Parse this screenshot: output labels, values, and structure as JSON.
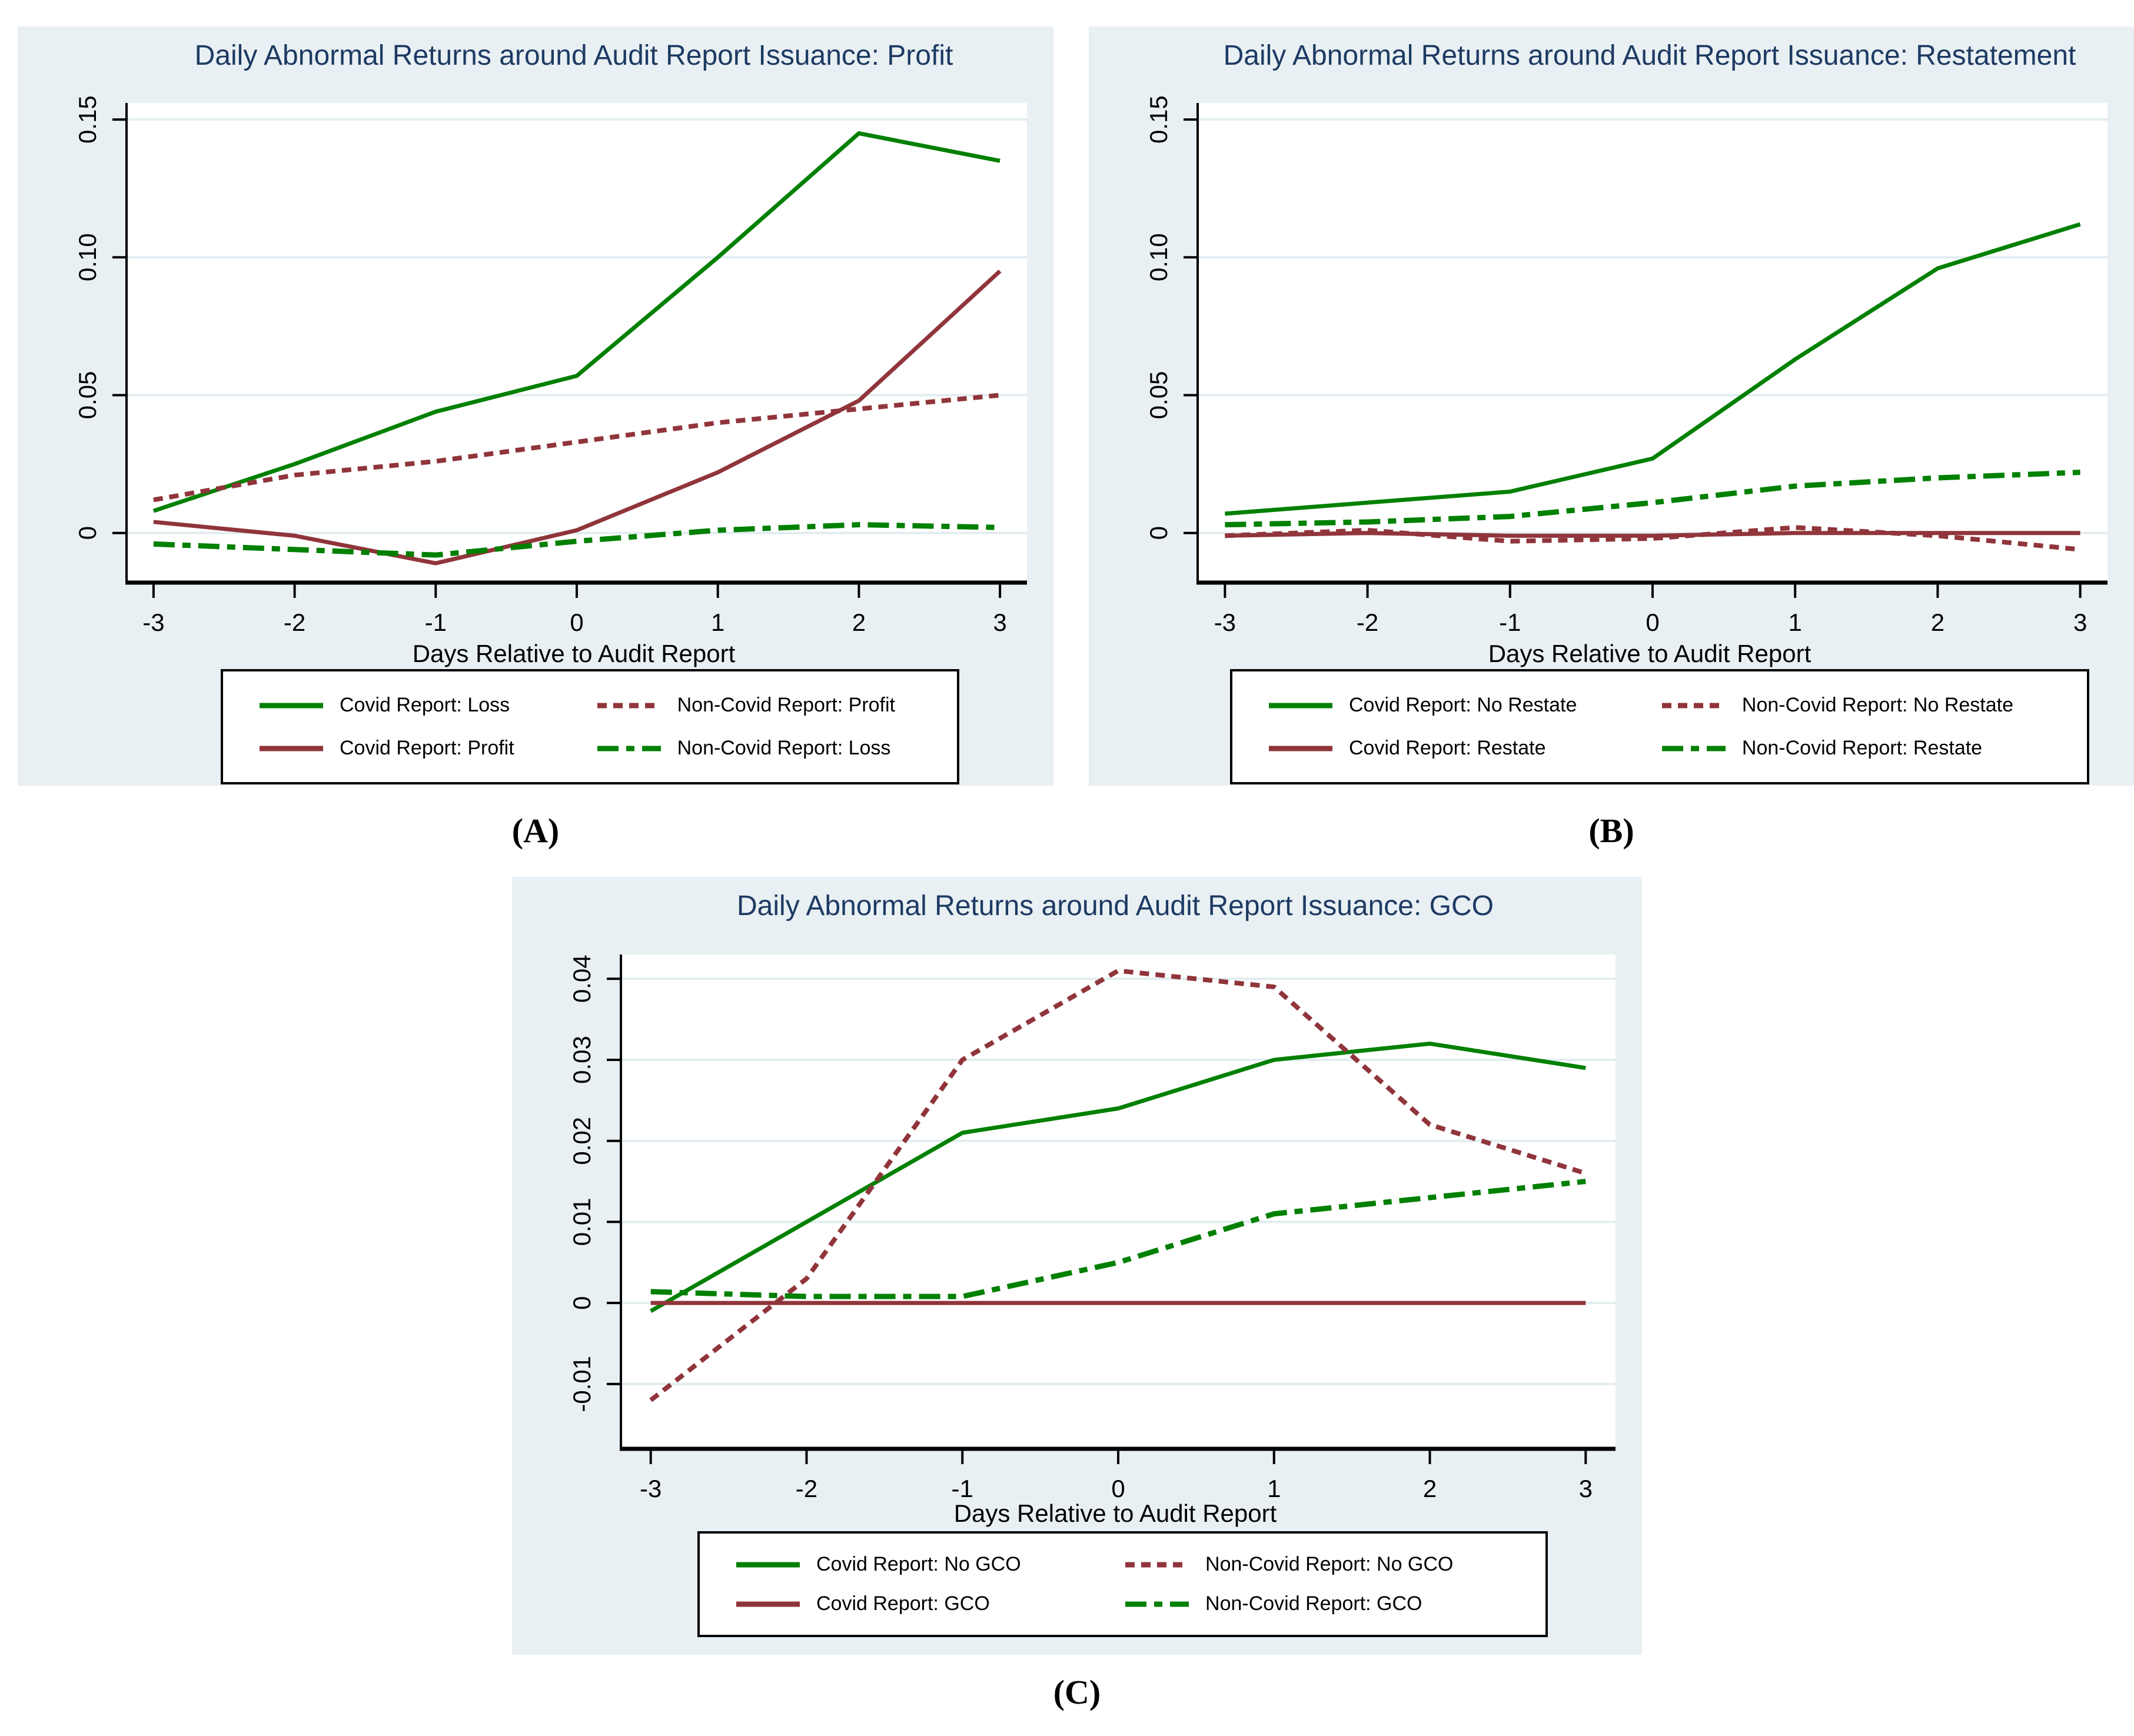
{
  "colors": {
    "figure_background": "#e9f0f3",
    "plot_background": "#ffffff",
    "gridline": "#e2edf0",
    "axis": "#000000",
    "title_navy": "#1d3a63",
    "green": "#008000",
    "maroon": "#90353b"
  },
  "panel_captions": {
    "a": "(A)",
    "b": "(B)",
    "c": "(C)"
  },
  "chart_data": [
    {
      "type": "line",
      "title": "Daily Abnormal Returns around Audit Report Issuance: Profit",
      "xlabel": "Days Relative to Audit Report",
      "ylabel": "",
      "grid": true,
      "legend_position": "bottom",
      "x": [
        -3,
        -2,
        -1,
        0,
        1,
        2,
        3
      ],
      "xlim": [
        -3,
        3
      ],
      "ylim": [
        -0.018,
        0.156
      ],
      "xticks": [
        {
          "v": -3,
          "label": "-3"
        },
        {
          "v": -2,
          "label": "-2"
        },
        {
          "v": -1,
          "label": "-1"
        },
        {
          "v": 0,
          "label": "0"
        },
        {
          "v": 1,
          "label": "1"
        },
        {
          "v": 2,
          "label": "2"
        },
        {
          "v": 3,
          "label": "3"
        }
      ],
      "yticks": [
        {
          "v": 0,
          "label": "0"
        },
        {
          "v": 0.05,
          "label": "0.05"
        },
        {
          "v": 0.1,
          "label": "0.10"
        },
        {
          "v": 0.15,
          "label": "0.15"
        }
      ],
      "series": [
        {
          "name": "Covid Report: Loss",
          "color": "#008000",
          "dash": "",
          "width": 7,
          "values": [
            0.008,
            0.025,
            0.044,
            0.057,
            0.1,
            0.145,
            0.135
          ]
        },
        {
          "name": "Covid Report: Profit",
          "color": "#90353b",
          "dash": "",
          "width": 7,
          "values": [
            0.004,
            -0.001,
            -0.011,
            0.001,
            0.022,
            0.048,
            0.095
          ]
        },
        {
          "name": "Non-Covid Report: Profit",
          "color": "#90353b",
          "dash": "16 11",
          "width": 8,
          "values": [
            0.012,
            0.021,
            0.026,
            0.033,
            0.04,
            0.045,
            0.05
          ]
        },
        {
          "name": "Non-Covid Report: Loss",
          "color": "#008000",
          "dash": "36 13 14 13",
          "width": 9,
          "values": [
            -0.004,
            -0.006,
            -0.008,
            -0.003,
            0.001,
            0.003,
            0.002
          ]
        }
      ]
    },
    {
      "type": "line",
      "title": "Daily Abnormal Returns around Audit Report Issuance: Restatement",
      "xlabel": "Days Relative to Audit Report",
      "ylabel": "",
      "grid": true,
      "legend_position": "bottom",
      "x": [
        -3,
        -2,
        -1,
        0,
        1,
        2,
        3
      ],
      "xlim": [
        -3,
        3
      ],
      "ylim": [
        -0.018,
        0.156
      ],
      "xticks": [
        {
          "v": -3,
          "label": "-3"
        },
        {
          "v": -2,
          "label": "-2"
        },
        {
          "v": -1,
          "label": "-1"
        },
        {
          "v": 0,
          "label": "0"
        },
        {
          "v": 1,
          "label": "1"
        },
        {
          "v": 2,
          "label": "2"
        },
        {
          "v": 3,
          "label": "3"
        }
      ],
      "yticks": [
        {
          "v": 0,
          "label": "0"
        },
        {
          "v": 0.05,
          "label": "0.05"
        },
        {
          "v": 0.1,
          "label": "0.10"
        },
        {
          "v": 0.15,
          "label": "0.15"
        }
      ],
      "series": [
        {
          "name": "Covid Report: No Restate",
          "color": "#008000",
          "dash": "",
          "width": 7,
          "values": [
            0.007,
            0.011,
            0.015,
            0.027,
            0.063,
            0.096,
            0.112
          ]
        },
        {
          "name": "Covid Report: Restate",
          "color": "#90353b",
          "dash": "",
          "width": 7,
          "values": [
            -0.001,
            0.0,
            -0.001,
            -0.001,
            0.0,
            0.0,
            0.0
          ]
        },
        {
          "name": "Non-Covid Report: No Restate",
          "color": "#90353b",
          "dash": "16 11",
          "width": 8,
          "values": [
            -0.001,
            0.001,
            -0.003,
            -0.002,
            0.002,
            -0.001,
            -0.006
          ]
        },
        {
          "name": "Non-Covid Report: Restate",
          "color": "#008000",
          "dash": "36 13 14 13",
          "width": 9,
          "values": [
            0.003,
            0.004,
            0.006,
            0.011,
            0.017,
            0.02,
            0.022
          ]
        }
      ]
    },
    {
      "type": "line",
      "title": "Daily Abnormal Returns around Audit Report Issuance: GCO",
      "xlabel": "Days Relative to Audit Report",
      "ylabel": "",
      "grid": true,
      "legend_position": "bottom",
      "x": [
        -3,
        -2,
        -1,
        0,
        1,
        2,
        3
      ],
      "xlim": [
        -3,
        3
      ],
      "ylim": [
        -0.018,
        0.043
      ],
      "xticks": [
        {
          "v": -3,
          "label": "-3"
        },
        {
          "v": -2,
          "label": "-2"
        },
        {
          "v": -1,
          "label": "-1"
        },
        {
          "v": 0,
          "label": "0"
        },
        {
          "v": 1,
          "label": "1"
        },
        {
          "v": 2,
          "label": "2"
        },
        {
          "v": 3,
          "label": "3"
        }
      ],
      "yticks": [
        {
          "v": -0.01,
          "label": "-0.01"
        },
        {
          "v": 0,
          "label": "0"
        },
        {
          "v": 0.01,
          "label": "0.01"
        },
        {
          "v": 0.02,
          "label": "0.02"
        },
        {
          "v": 0.03,
          "label": "0.03"
        },
        {
          "v": 0.04,
          "label": "0.04"
        }
      ],
      "series": [
        {
          "name": "Covid Report: No GCO",
          "color": "#008000",
          "dash": "",
          "width": 7,
          "values": [
            -0.001,
            0.01,
            0.021,
            0.024,
            0.03,
            0.032,
            0.029
          ]
        },
        {
          "name": "Covid Report: GCO",
          "color": "#90353b",
          "dash": "",
          "width": 7,
          "values": [
            0.0,
            0.0,
            0.0,
            0.0,
            0.0,
            0.0,
            0.0
          ]
        },
        {
          "name": "Non-Covid Report: No GCO",
          "color": "#90353b",
          "dash": "16 11",
          "width": 8,
          "values": [
            -0.012,
            0.003,
            0.03,
            0.041,
            0.039,
            0.022,
            0.016
          ]
        },
        {
          "name": "Non-Covid Report: GCO",
          "color": "#008000",
          "dash": "36 13 14 13",
          "width": 9,
          "values": [
            0.0014,
            0.0008,
            0.0008,
            0.005,
            0.011,
            0.013,
            0.015
          ]
        }
      ]
    }
  ]
}
